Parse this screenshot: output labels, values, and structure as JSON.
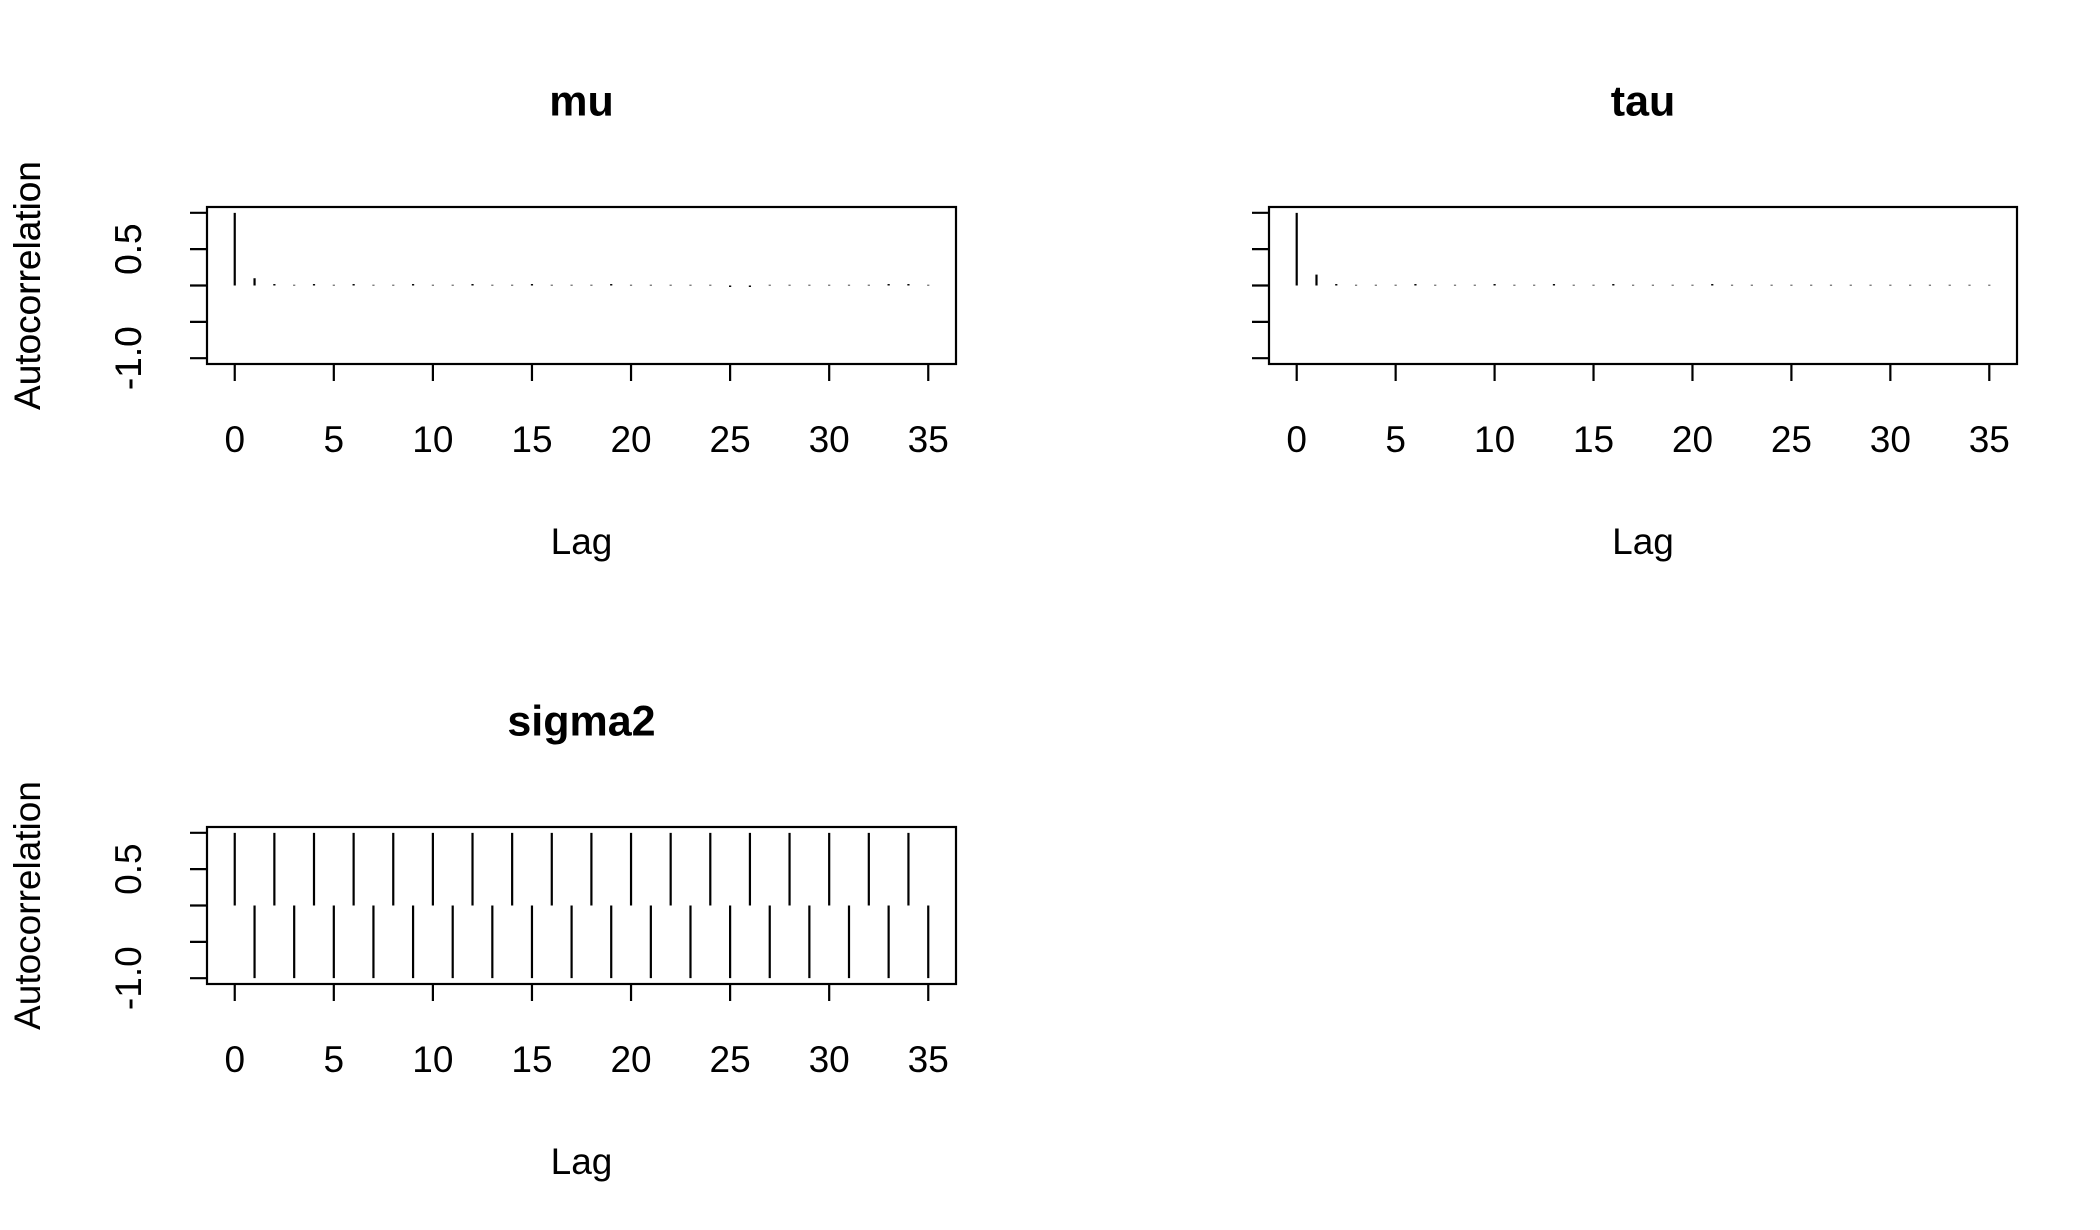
{
  "chart_data": [
    {
      "type": "bar",
      "title": "mu",
      "xlabel": "Lag",
      "ylabel": "Autocorrelation",
      "x": [
        0,
        1,
        2,
        3,
        4,
        5,
        6,
        7,
        8,
        9,
        10,
        11,
        12,
        13,
        14,
        15,
        16,
        17,
        18,
        19,
        20,
        21,
        22,
        23,
        24,
        25,
        26,
        27,
        28,
        29,
        30,
        31,
        32,
        33,
        34,
        35
      ],
      "values": [
        1,
        0.1,
        0.02,
        0.01,
        0.02,
        0.01,
        0.02,
        0.01,
        0.01,
        0.02,
        0.01,
        0.01,
        0.02,
        0.01,
        0.01,
        0.02,
        0.01,
        0.01,
        0.01,
        0.02,
        0.01,
        0.01,
        0.01,
        0.01,
        0.01,
        -0.02,
        -0.02,
        0.01,
        0.01,
        0.01,
        0.01,
        0.01,
        0.01,
        0.02,
        0.02,
        0.01
      ],
      "color": "#000000",
      "xlim": [
        -1.4,
        36.4
      ],
      "xticks": [
        0,
        5,
        10,
        15,
        20,
        25,
        30,
        35
      ],
      "ylim": [
        -1.08,
        1.08
      ],
      "yticks": [
        {
          "value": -1,
          "label": "-1.0"
        },
        {
          "value": 0.5,
          "label": "0.5"
        }
      ],
      "yticks_unlabeled": [
        -0.5,
        0,
        1
      ]
    },
    {
      "type": "bar",
      "title": "tau",
      "xlabel": "Lag",
      "ylabel": "Autocorrelation",
      "x": [
        0,
        1,
        2,
        3,
        4,
        5,
        6,
        7,
        8,
        9,
        10,
        11,
        12,
        13,
        14,
        15,
        16,
        17,
        18,
        19,
        20,
        21,
        22,
        23,
        24,
        25,
        26,
        27,
        28,
        29,
        30,
        31,
        32,
        33,
        34,
        35
      ],
      "values": [
        1,
        0.15,
        0.02,
        0.01,
        0.01,
        0.01,
        0.02,
        0.01,
        0.01,
        0.01,
        0.02,
        0.01,
        0.01,
        0.02,
        0.01,
        0.01,
        0.02,
        0.01,
        0.01,
        0.01,
        0.01,
        0.02,
        0.01,
        0.01,
        0.01,
        0.01,
        0.01,
        0.01,
        0.01,
        0.01,
        0.01,
        0.01,
        0.01,
        0.01,
        0.01,
        0.01
      ],
      "color": "#000000",
      "xlim": [
        -1.4,
        36.4
      ],
      "xticks": [
        0,
        5,
        10,
        15,
        20,
        25,
        30,
        35
      ],
      "ylim": [
        -1.08,
        1.08
      ],
      "yticks": [
        {
          "value": -1,
          "label": "-1.0"
        },
        {
          "value": 0.5,
          "label": "0.5"
        }
      ],
      "yticks_unlabeled": [
        -0.5,
        0,
        1
      ]
    },
    {
      "type": "bar",
      "title": "sigma2",
      "xlabel": "Lag",
      "ylabel": "Autocorrelation",
      "x": [
        0,
        1,
        2,
        3,
        4,
        5,
        6,
        7,
        8,
        9,
        10,
        11,
        12,
        13,
        14,
        15,
        16,
        17,
        18,
        19,
        20,
        21,
        22,
        23,
        24,
        25,
        26,
        27,
        28,
        29,
        30,
        31,
        32,
        33,
        34,
        35
      ],
      "values": [
        1,
        -1,
        1,
        -1,
        1,
        -1,
        1,
        -1,
        1,
        -1,
        1,
        -1,
        1,
        -1,
        1,
        -1,
        1,
        -1,
        1,
        -1,
        1,
        -1,
        1,
        -1,
        1,
        -1,
        1,
        -1,
        1,
        -1,
        1,
        -1,
        1,
        -1,
        1,
        -1
      ],
      "color": "#000000",
      "xlim": [
        -1.4,
        36.4
      ],
      "xticks": [
        0,
        5,
        10,
        15,
        20,
        25,
        30,
        35
      ],
      "ylim": [
        -1.08,
        1.08
      ],
      "yticks": [
        {
          "value": -1,
          "label": "-1.0"
        },
        {
          "value": 0.5,
          "label": "0.5"
        }
      ],
      "yticks_unlabeled": [
        -0.5,
        0,
        1
      ]
    }
  ]
}
